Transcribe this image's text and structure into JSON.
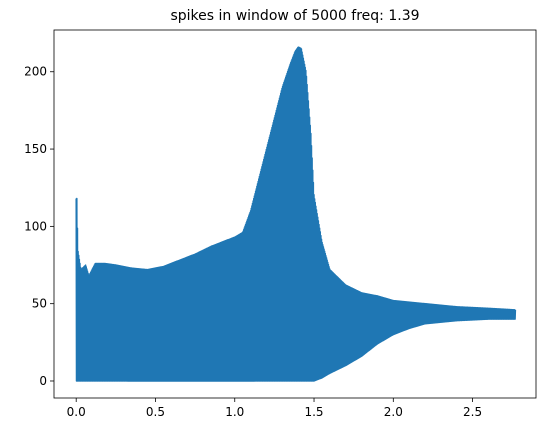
{
  "chart_data": {
    "type": "line",
    "title": "spikes in window of 5000 freq: 1.39",
    "xlabel": "",
    "ylabel": "",
    "xlim": [
      -0.14,
      2.9
    ],
    "ylim": [
      -11,
      227
    ],
    "x_ticks": [
      0.0,
      0.5,
      1.0,
      1.5,
      2.0,
      2.5
    ],
    "x_tick_labels": [
      "0.0",
      "0.5",
      "1.0",
      "1.5",
      "2.0",
      "2.5"
    ],
    "y_ticks": [
      0,
      50,
      100,
      150,
      200
    ],
    "y_tick_labels": [
      "0",
      "50",
      "100",
      "150",
      "200"
    ],
    "grid": false,
    "color": "#1f77b4",
    "series": [
      {
        "x_range": [
          0.0,
          2.77
        ],
        "upper_envelope": {
          "x": [
            0.0,
            0.005,
            0.01,
            0.03,
            0.06,
            0.08,
            0.12,
            0.18,
            0.25,
            0.35,
            0.45,
            0.55,
            0.65,
            0.75,
            0.85,
            0.95,
            1.0,
            1.05,
            1.1,
            1.15,
            1.2,
            1.25,
            1.3,
            1.35,
            1.38,
            1.4,
            1.42,
            1.45,
            1.48,
            1.5,
            1.55,
            1.6,
            1.7,
            1.8,
            1.9,
            2.0,
            2.2,
            2.4,
            2.6,
            2.77
          ],
          "y": [
            118,
            118,
            85,
            72,
            75,
            68,
            76,
            76,
            75,
            73,
            72,
            74,
            78,
            82,
            87,
            91,
            93,
            96,
            110,
            130,
            150,
            170,
            190,
            205,
            213,
            216,
            215,
            200,
            160,
            120,
            90,
            72,
            62,
            57,
            55,
            52,
            50,
            48,
            47,
            46
          ]
        },
        "lower_envelope": {
          "x": [
            0.0,
            0.01,
            0.05,
            0.1,
            0.2,
            0.3,
            0.5,
            0.8,
            1.0,
            1.2,
            1.4,
            1.5,
            1.55,
            1.6,
            1.7,
            1.8,
            1.9,
            2.0,
            2.1,
            2.2,
            2.4,
            2.6,
            2.77
          ],
          "y": [
            0,
            0,
            0,
            0,
            0,
            0,
            0,
            0,
            0,
            0,
            0,
            0,
            2,
            5,
            10,
            16,
            24,
            30,
            34,
            37,
            39,
            40,
            40
          ]
        },
        "oscillation_count": 1400
      }
    ]
  }
}
